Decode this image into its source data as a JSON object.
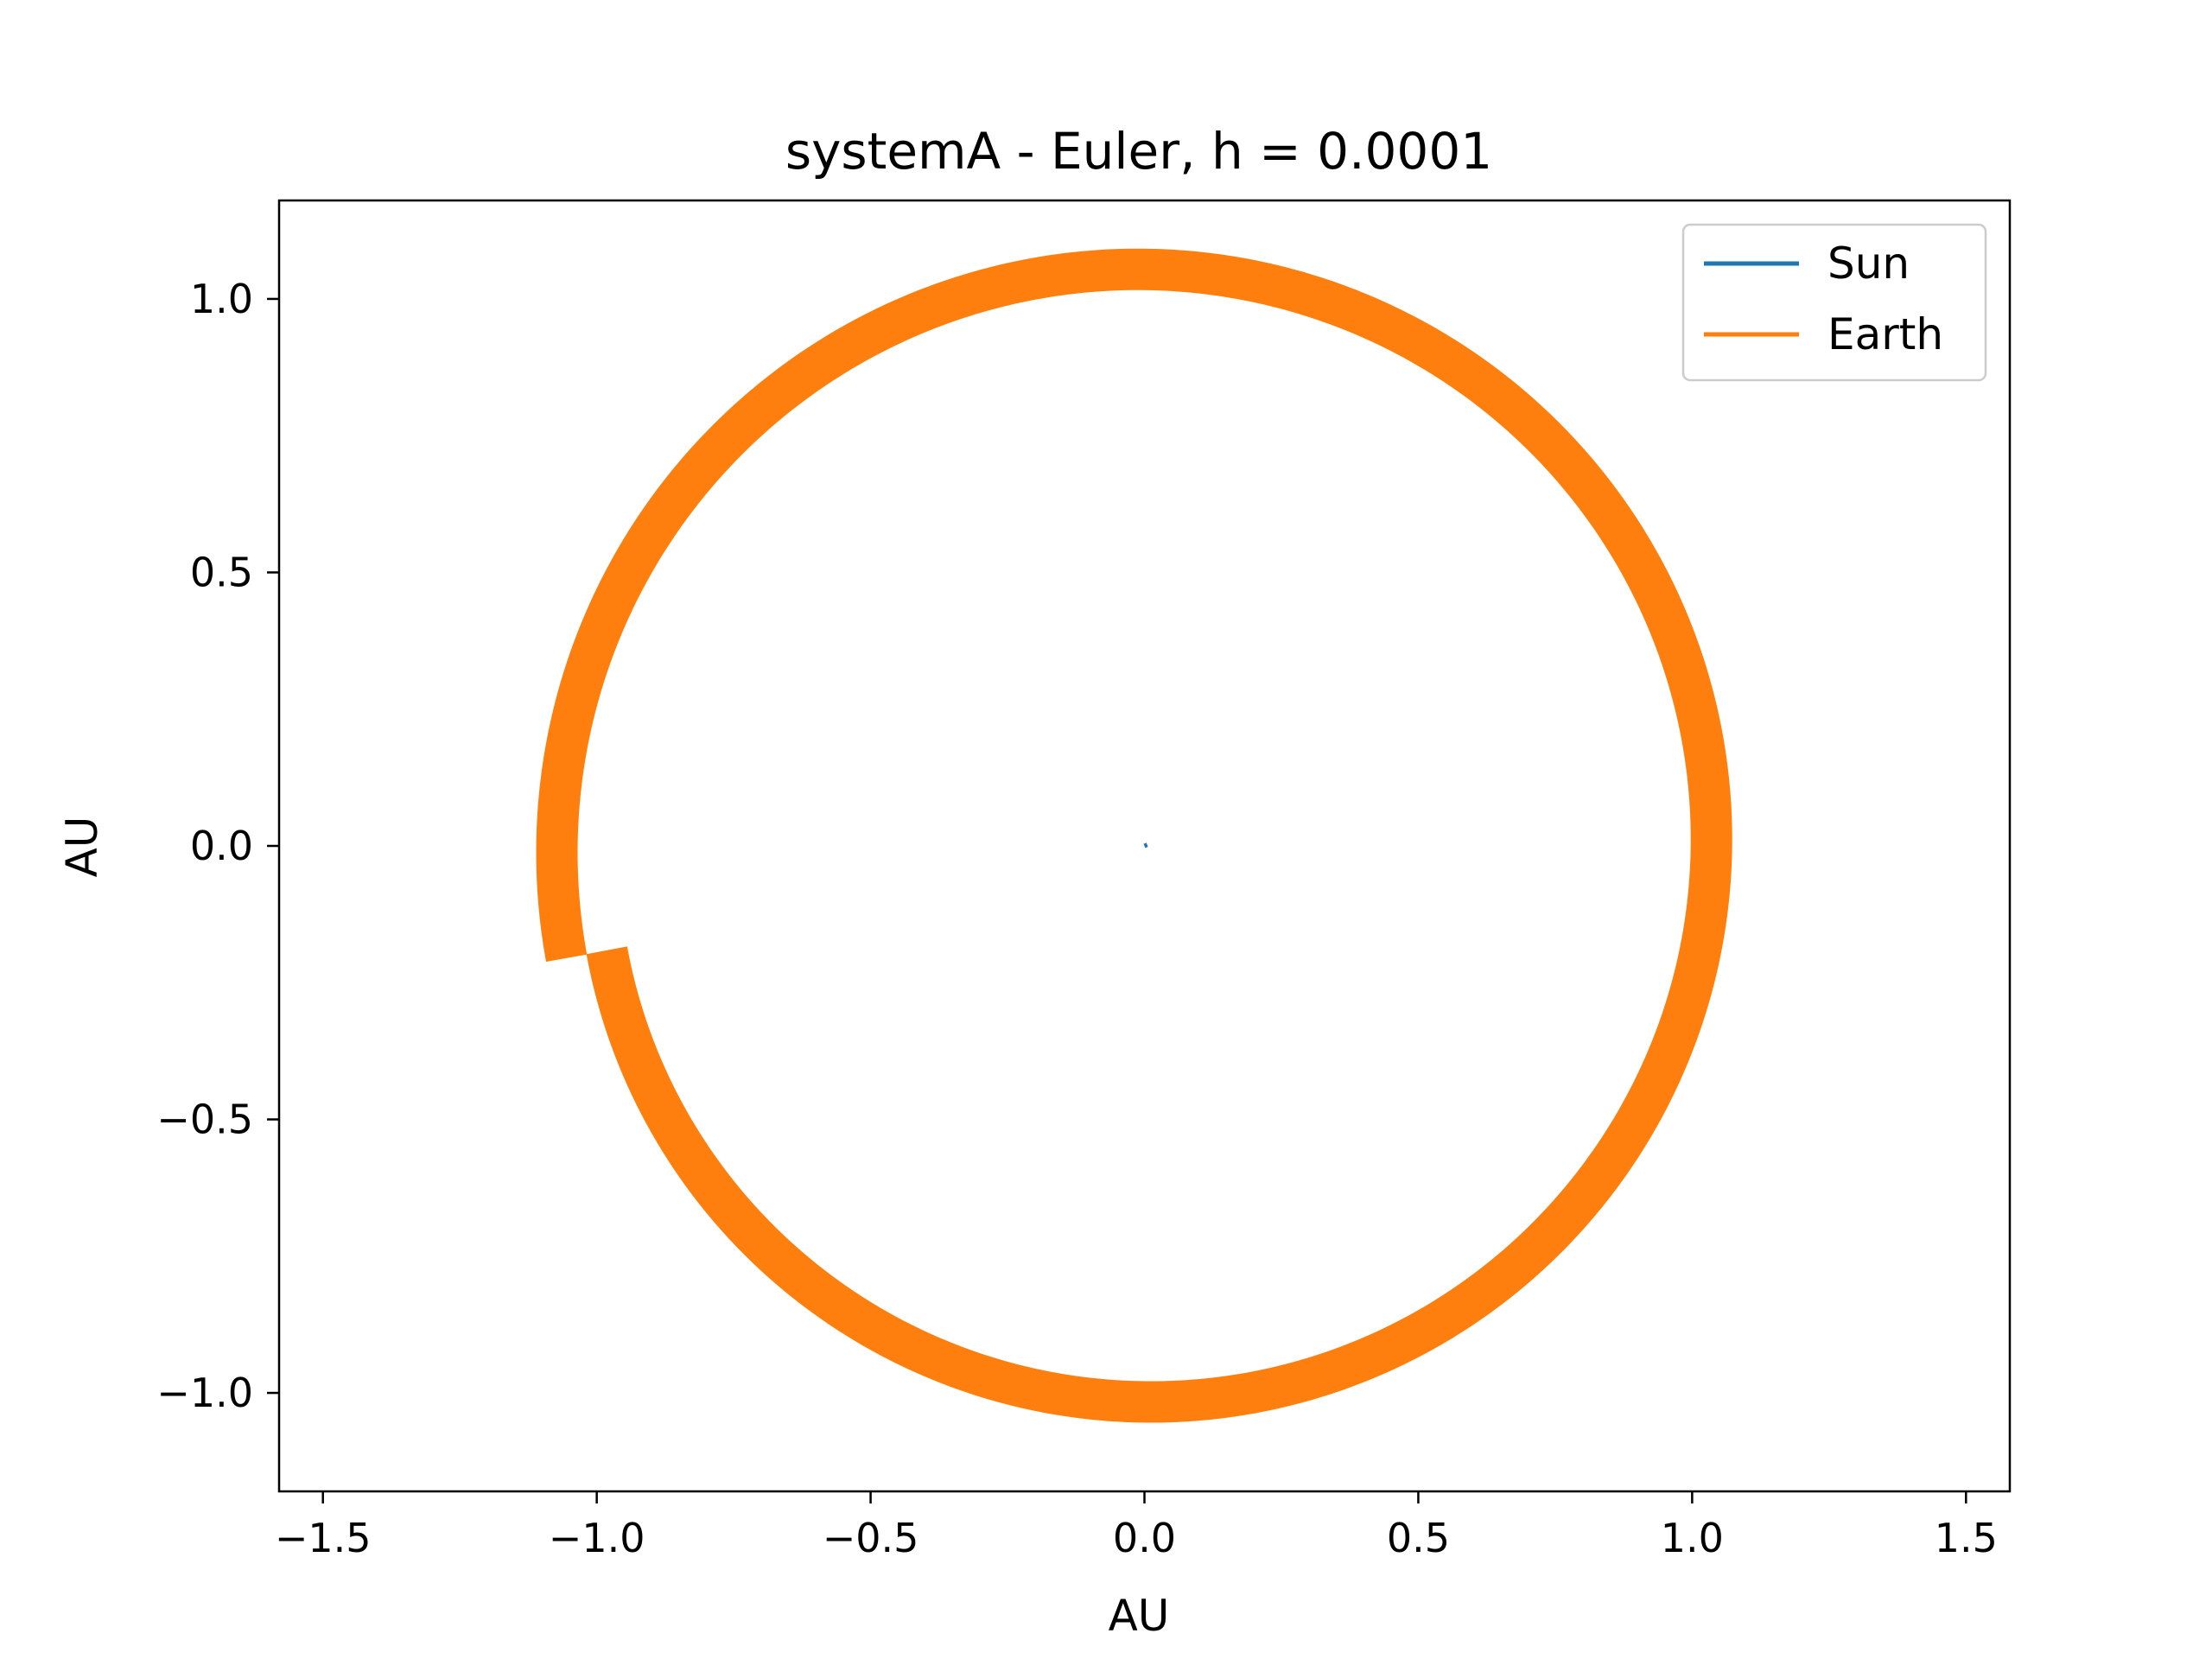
{
  "chart_data": {
    "type": "line",
    "title": "systemA - Euler, h = 0.0001",
    "xlabel": "AU",
    "ylabel": "AU",
    "xlim": [
      -1.58,
      1.58
    ],
    "ylim": [
      -1.18,
      1.18
    ],
    "xticks": [
      -1.5,
      -1.0,
      -0.5,
      0.0,
      0.5,
      1.0,
      1.5
    ],
    "xtick_labels": [
      "−1.5",
      "−1.0",
      "−0.5",
      "0.0",
      "0.5",
      "1.0",
      "1.5"
    ],
    "yticks": [
      1.0,
      0.5,
      0.0,
      -0.5,
      -1.0
    ],
    "ytick_labels": [
      "1.0",
      "0.5",
      "0.0",
      "−0.5",
      "−1.0"
    ],
    "grid": false,
    "legend_position": "top-right",
    "series": [
      {
        "name": "Sun",
        "color": "#1f77b4",
        "x": [
          0.0,
          0.005
        ],
        "y": [
          0.0,
          0.002
        ]
      },
      {
        "name": "Earth",
        "color": "#ff7f0e",
        "description_range": "spiral orbit, radius grows from 1.0 to ~1.075 AU",
        "x": [
          1.0,
          0.0,
          -1.0,
          0.0,
          1.0
        ],
        "y": [
          0.0,
          1.0,
          0.0,
          -1.0,
          0.0
        ],
        "r_start": 1.0,
        "r_end": 1.075,
        "end_angle_deg": 191
      }
    ]
  }
}
